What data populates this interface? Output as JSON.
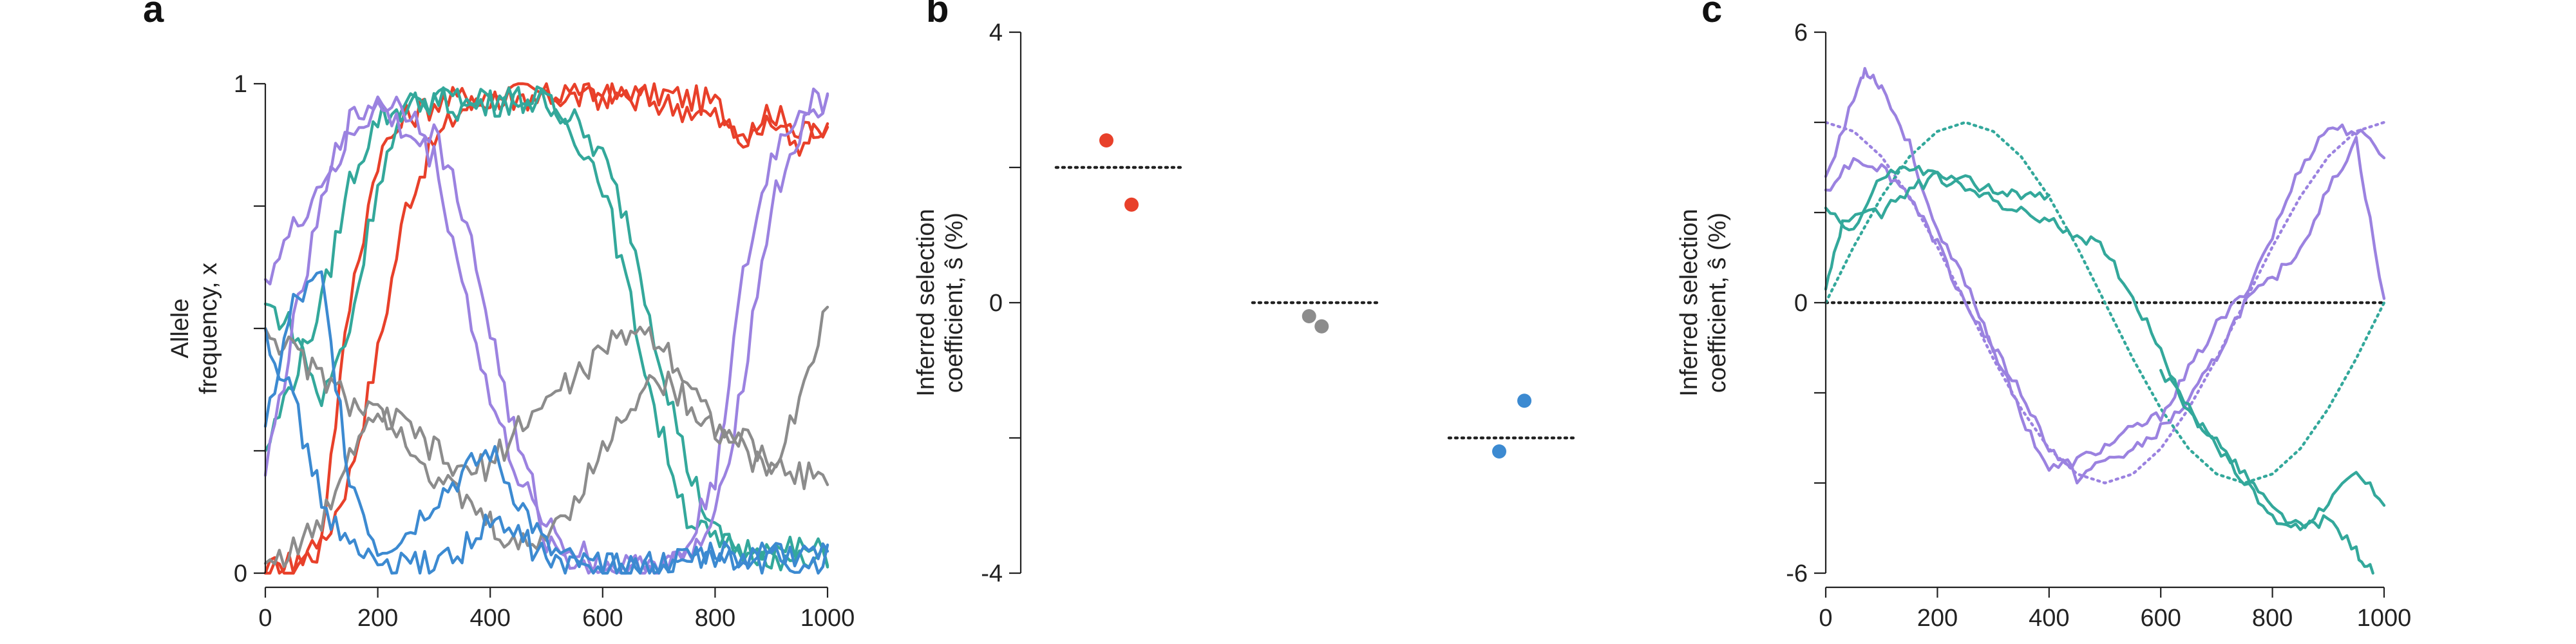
{
  "chart_data": [
    {
      "panel": "a",
      "type": "line",
      "ylabel_lines": [
        "Allele",
        "frequency, x"
      ],
      "xlim": [
        0,
        1000
      ],
      "ylim": [
        0,
        1
      ],
      "x_ticks": [
        0,
        200,
        400,
        600,
        800,
        1000
      ],
      "y_ticks": [
        0,
        0.25,
        0.5,
        0.75,
        1
      ],
      "y_tick_labels": [
        "0",
        "",
        "",
        "",
        "1"
      ],
      "series": [
        {
          "color": "#e8402a",
          "x": [
            0,
            50,
            100,
            150,
            200,
            250,
            300,
            350,
            400,
            450,
            500,
            550,
            600,
            650,
            700,
            750,
            800,
            850,
            900,
            950,
            1000
          ],
          "y": [
            0,
            0.02,
            0.05,
            0.2,
            0.45,
            0.75,
            0.88,
            0.95,
            0.97,
            0.98,
            0.98,
            0.97,
            0.98,
            0.97,
            0.98,
            0.97,
            0.96,
            0.9,
            0.95,
            0.88,
            0.9
          ]
        },
        {
          "color": "#e8402a",
          "x": [
            0,
            50,
            100,
            150,
            200,
            250,
            300,
            350,
            400,
            450,
            500,
            550,
            600,
            650,
            700,
            750,
            800,
            850,
            900,
            950,
            1000
          ],
          "y": [
            0,
            0.01,
            0.08,
            0.55,
            0.85,
            0.93,
            0.96,
            0.97,
            0.98,
            0.97,
            0.98,
            0.98,
            0.97,
            0.98,
            0.96,
            0.95,
            0.93,
            0.88,
            0.92,
            0.9,
            0.92
          ]
        },
        {
          "color": "#33a89b",
          "x": [
            0,
            50,
            100,
            150,
            200,
            250,
            300,
            350,
            400,
            450,
            500,
            550,
            600,
            650,
            700,
            750,
            800,
            850,
            900,
            950,
            1000
          ],
          "y": [
            0.25,
            0.4,
            0.55,
            0.8,
            0.93,
            0.95,
            0.97,
            0.97,
            0.96,
            0.97,
            0.97,
            0.92,
            0.85,
            0.7,
            0.45,
            0.22,
            0.08,
            0.04,
            0.03,
            0.04,
            0.03
          ]
        },
        {
          "color": "#33a89b",
          "x": [
            0,
            50,
            100,
            150,
            200,
            250,
            300,
            350,
            400,
            450,
            500,
            550,
            600,
            650,
            700,
            750,
            800,
            850,
            900,
            950,
            1000
          ],
          "y": [
            0.55,
            0.5,
            0.35,
            0.5,
            0.8,
            0.95,
            0.97,
            0.95,
            0.96,
            0.97,
            0.96,
            0.9,
            0.8,
            0.55,
            0.3,
            0.12,
            0.06,
            0.05,
            0.04,
            0.05,
            0.04
          ]
        },
        {
          "color": "#9b82e0",
          "x": [
            0,
            50,
            100,
            150,
            200,
            250,
            300,
            350,
            400,
            450,
            500,
            550,
            600,
            650,
            700,
            750,
            800,
            850,
            900,
            950,
            1000
          ],
          "y": [
            0.2,
            0.5,
            0.75,
            0.92,
            0.97,
            0.95,
            0.9,
            0.75,
            0.5,
            0.25,
            0.1,
            0.05,
            0.02,
            0.01,
            0.01,
            0.03,
            0.1,
            0.4,
            0.75,
            0.9,
            0.96
          ]
        },
        {
          "color": "#9b82e0",
          "x": [
            0,
            50,
            100,
            150,
            200,
            250,
            300,
            350,
            400,
            450,
            500,
            550,
            600,
            650,
            700,
            750,
            800,
            850,
            900,
            950,
            1000
          ],
          "y": [
            0.6,
            0.7,
            0.8,
            0.9,
            0.95,
            0.9,
            0.85,
            0.6,
            0.35,
            0.2,
            0.07,
            0.02,
            0.01,
            0.01,
            0.02,
            0.05,
            0.2,
            0.6,
            0.85,
            0.95,
            0.97
          ]
        },
        {
          "color": "#8c8c8c",
          "x": [
            0,
            50,
            100,
            150,
            200,
            250,
            300,
            350,
            400,
            450,
            500,
            550,
            600,
            650,
            700,
            750,
            800,
            850,
            900,
            950,
            1000
          ],
          "y": [
            0.5,
            0.45,
            0.4,
            0.35,
            0.32,
            0.3,
            0.25,
            0.2,
            0.22,
            0.3,
            0.35,
            0.4,
            0.45,
            0.5,
            0.48,
            0.4,
            0.3,
            0.25,
            0.2,
            0.35,
            0.55
          ]
        },
        {
          "color": "#8c8c8c",
          "x": [
            0,
            50,
            100,
            150,
            200,
            250,
            300,
            350,
            400,
            450,
            500,
            550,
            600,
            650,
            700,
            750,
            800,
            850,
            900,
            950,
            1000
          ],
          "y": [
            0.02,
            0.05,
            0.1,
            0.25,
            0.35,
            0.28,
            0.2,
            0.15,
            0.1,
            0.05,
            0.08,
            0.15,
            0.25,
            0.35,
            0.4,
            0.35,
            0.3,
            0.28,
            0.22,
            0.2,
            0.2
          ]
        },
        {
          "color": "#3c8ad1",
          "x": [
            0,
            50,
            100,
            150,
            200,
            250,
            300,
            350,
            400,
            450,
            500,
            550,
            600,
            650,
            700,
            750,
            800,
            850,
            900,
            950,
            1000
          ],
          "y": [
            0.3,
            0.55,
            0.6,
            0.2,
            0.05,
            0.08,
            0.15,
            0.2,
            0.25,
            0.15,
            0.05,
            0.02,
            0.01,
            0.01,
            0.02,
            0.03,
            0.05,
            0.03,
            0.04,
            0.02,
            0.03
          ]
        },
        {
          "color": "#3c8ad1",
          "x": [
            0,
            50,
            100,
            150,
            200,
            250,
            300,
            350,
            400,
            450,
            500,
            550,
            600,
            650,
            700,
            750,
            800,
            850,
            900,
            950,
            1000
          ],
          "y": [
            0.5,
            0.35,
            0.15,
            0.05,
            0.02,
            0.01,
            0.02,
            0.05,
            0.1,
            0.08,
            0.03,
            0.01,
            0.01,
            0.01,
            0.01,
            0.02,
            0.03,
            0.02,
            0.03,
            0.04,
            0.03
          ]
        }
      ]
    },
    {
      "panel": "b",
      "type": "scatter",
      "ylabel_lines": [
        "Inferred selection",
        "coefficient, ŝ (%)"
      ],
      "ylim": [
        -4,
        4
      ],
      "y_ticks": [
        -4,
        -2,
        0,
        2,
        4
      ],
      "y_tick_labels": [
        "-4",
        "",
        "0",
        "",
        "4"
      ],
      "groups": [
        {
          "color": "#e8402a",
          "true_value": 2,
          "points": [
            [
              0.4,
              2.4
            ],
            [
              0.6,
              1.45
            ]
          ]
        },
        {
          "color": "#8c8c8c",
          "true_value": 0,
          "points": [
            [
              0.45,
              -0.2
            ],
            [
              0.55,
              -0.35
            ]
          ]
        },
        {
          "color": "#3c8ad1",
          "true_value": -2,
          "points": [
            [
              0.4,
              -2.2
            ],
            [
              0.6,
              -1.45
            ]
          ]
        }
      ]
    },
    {
      "panel": "c",
      "type": "line",
      "ylabel_lines": [
        "Inferred selection",
        "coefficient, ŝ (%)"
      ],
      "xlim": [
        0,
        1000
      ],
      "ylim": [
        -6,
        6
      ],
      "x_ticks": [
        0,
        200,
        400,
        600,
        800,
        1000
      ],
      "y_ticks": [
        -6,
        -4,
        -2,
        0,
        2,
        4,
        6
      ],
      "y_tick_labels": [
        "-6",
        "",
        "",
        "0",
        "",
        "",
        "6"
      ],
      "series": [
        {
          "color": "#9b82e0",
          "x": [
            0,
            50,
            70,
            100,
            150,
            200,
            250,
            300,
            350,
            400,
            450,
            500,
            550,
            600,
            650,
            700,
            750,
            800,
            850,
            900,
            950,
            1000
          ],
          "y": [
            2.8,
            4.5,
            5.2,
            4.8,
            3.5,
            1.5,
            0.5,
            -1,
            -2.5,
            -3.7,
            -3.5,
            -3.2,
            -2.8,
            -2.5,
            -1.5,
            -0.5,
            0.2,
            1.5,
            3.0,
            3.9,
            3.8,
            3.3
          ]
        },
        {
          "color": "#9b82e0",
          "x": [
            0,
            50,
            100,
            150,
            200,
            250,
            300,
            350,
            400,
            450,
            500,
            550,
            600,
            650,
            700,
            750,
            800,
            850,
            900,
            950,
            1000
          ],
          "y": [
            2.5,
            3.2,
            3.0,
            2.4,
            1.3,
            0,
            -1,
            -2,
            -3.2,
            -3.9,
            -3.5,
            -3.3,
            -2.8,
            -2.2,
            -1.2,
            0,
            0.5,
            1.2,
            2.5,
            3.6,
            0
          ]
        },
        {
          "color": "#33a89b",
          "x": [
            0,
            30,
            100,
            150,
            200,
            250,
            300,
            350,
            400
          ],
          "y": [
            0.3,
            1.8,
            2.0,
            2.5,
            2.8,
            2.7,
            2.5,
            2.4,
            2.3
          ]
        },
        {
          "color": "#33a89b",
          "x": [
            0,
            50,
            100,
            150,
            200,
            250,
            300,
            350,
            400,
            450,
            500,
            550,
            600,
            650,
            700,
            750,
            800,
            850,
            900,
            950,
            1000
          ],
          "y": [
            2.1,
            1.6,
            2.8,
            3.0,
            2.8,
            2.5,
            2.3,
            2.0,
            1.8,
            1.5,
            1.2,
            0.1,
            -1.0,
            -2.5,
            -3.0,
            -4.0,
            -4.8,
            -5.0,
            -4.4,
            -3.8,
            -4.4
          ]
        },
        {
          "color": "#33a89b",
          "x": [
            600,
            650,
            700,
            750,
            800,
            850,
            900,
            950,
            980
          ],
          "y": [
            -1.5,
            -2.3,
            -3.2,
            -3.8,
            -4.6,
            -5.0,
            -4.8,
            -5.5,
            -6.0
          ]
        }
      ],
      "reference_curves": [
        {
          "color": "#9b82e0",
          "x": [
            0,
            50,
            100,
            150,
            200,
            250,
            300,
            350,
            400,
            450,
            500,
            550,
            600,
            650,
            700,
            750,
            800,
            850,
            900,
            950,
            1000
          ],
          "y": [
            4.0,
            3.8,
            3.24,
            2.35,
            1.24,
            0,
            -1.24,
            -2.35,
            -3.24,
            -3.8,
            -4.0,
            -3.8,
            -3.24,
            -2.35,
            -1.24,
            0,
            1.24,
            2.35,
            3.24,
            3.8,
            4.0
          ]
        },
        {
          "color": "#33a89b",
          "x": [
            0,
            50,
            100,
            150,
            200,
            250,
            300,
            350,
            400,
            450,
            500,
            550,
            600,
            650,
            700,
            750,
            800,
            850,
            900,
            950,
            1000
          ],
          "y": [
            0,
            1.24,
            2.35,
            3.24,
            3.8,
            4.0,
            3.8,
            3.24,
            2.35,
            1.24,
            0,
            -1.24,
            -2.35,
            -3.24,
            -3.8,
            -4.0,
            -3.8,
            -3.24,
            -2.35,
            -1.24,
            0
          ]
        }
      ]
    }
  ],
  "panels": {
    "a": {
      "label": "a"
    },
    "b": {
      "label": "b"
    },
    "c": {
      "label": "c"
    }
  }
}
